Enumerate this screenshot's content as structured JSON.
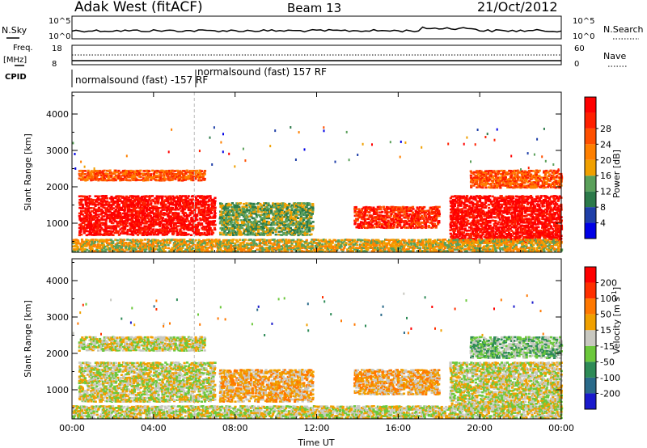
{
  "header": {
    "station": "Adak West (fitACF)",
    "beam": "Beam 13",
    "date": "21/Oct/2012"
  },
  "panel_labels": {
    "nsky": "N.Sky",
    "nsky_hi": "10^5",
    "nsky_lo": "10^0",
    "nsearch": "N.Search",
    "nsearch_hi": "10^5",
    "nsearch_lo": "10^0",
    "freq_line1": "Freq.",
    "freq_line2": "[MHz]",
    "freq_hi": "18",
    "freq_lo": "8",
    "nave": "Nave",
    "nave_hi": "60",
    "nave_lo": "0",
    "cpid": "CPID",
    "cpid_a": "normalsound (fast) -157 RF",
    "cpid_b": "normalsound (fast) 157 RF"
  },
  "chart_data": [
    {
      "type": "heatmap",
      "name": "power",
      "ylabel": "Slant Range [km]",
      "xlabel": "Time UT",
      "xticks": [
        "00:00",
        "04:00",
        "08:00",
        "12:00",
        "16:00",
        "20:00",
        "00:00"
      ],
      "yticks": [
        "1000",
        "2000",
        "3000",
        "4000"
      ],
      "ylim": [
        200,
        4600
      ],
      "colorbar": {
        "label": "Power [dB]",
        "ticks": [
          "4",
          "8",
          "12",
          "16",
          "20",
          "24",
          "28"
        ],
        "colors": [
          "#0000e6",
          "#1f3fa8",
          "#2c7a4a",
          "#5aa05a",
          "#f0a000",
          "#ff8000",
          "#ff5000",
          "#ff2000",
          "#ff0000"
        ]
      },
      "echo_regions": [
        {
          "t0": 0.3,
          "t1": 7.0,
          "r0": 700,
          "r1": 1800,
          "level": 8
        },
        {
          "t0": 0.3,
          "t1": 6.5,
          "r0": 2200,
          "r1": 2500,
          "level": 6
        },
        {
          "t0": 7.2,
          "t1": 11.8,
          "r0": 700,
          "r1": 1600,
          "level": 3
        },
        {
          "t0": 13.8,
          "t1": 18.0,
          "r0": 900,
          "r1": 1500,
          "level": 7
        },
        {
          "t0": 18.5,
          "t1": 24.0,
          "r0": 500,
          "r1": 1800,
          "level": 8
        },
        {
          "t0": 19.5,
          "t1": 24.0,
          "r0": 2000,
          "r1": 2500,
          "level": 6
        },
        {
          "t0": 0.0,
          "t1": 24.0,
          "r0": 250,
          "r1": 600,
          "level": 4
        }
      ]
    },
    {
      "type": "heatmap",
      "name": "velocity",
      "ylabel": "Slant Range [km]",
      "xlabel": "Time UT",
      "xticks": [
        "00:00",
        "04:00",
        "08:00",
        "12:00",
        "16:00",
        "20:00",
        "00:00"
      ],
      "yticks": [
        "1000",
        "2000",
        "3000",
        "4000"
      ],
      "ylim": [
        200,
        4600
      ],
      "colorbar": {
        "label": "Velocity [m s",
        "label_sup": "-1",
        "label_end": "]",
        "ticks": [
          "200",
          "100",
          "50",
          "15",
          "-15",
          "-50",
          "-100",
          "-200"
        ],
        "colors": [
          "#1a1acc",
          "#2a6a8a",
          "#2e8b57",
          "#6cc83c",
          "#c8c8c0",
          "#f0a000",
          "#ff7800",
          "#ff3000",
          "#ff0000"
        ]
      },
      "echo_regions": [
        {
          "t0": 0.3,
          "t1": 7.0,
          "r0": 700,
          "r1": 1800,
          "level": 4
        },
        {
          "t0": 0.3,
          "t1": 6.5,
          "r0": 2100,
          "r1": 2500,
          "level": 4
        },
        {
          "t0": 7.2,
          "t1": 11.8,
          "r0": 700,
          "r1": 1600,
          "level": 5
        },
        {
          "t0": 13.8,
          "t1": 18.0,
          "r0": 900,
          "r1": 1600,
          "level": 5
        },
        {
          "t0": 18.5,
          "t1": 24.0,
          "r0": 500,
          "r1": 1800,
          "level": 4
        },
        {
          "t0": 19.5,
          "t1": 24.0,
          "r0": 1900,
          "r1": 2500,
          "level": 3
        },
        {
          "t0": 0.0,
          "t1": 24.0,
          "r0": 250,
          "r1": 600,
          "level": 4
        }
      ]
    }
  ]
}
